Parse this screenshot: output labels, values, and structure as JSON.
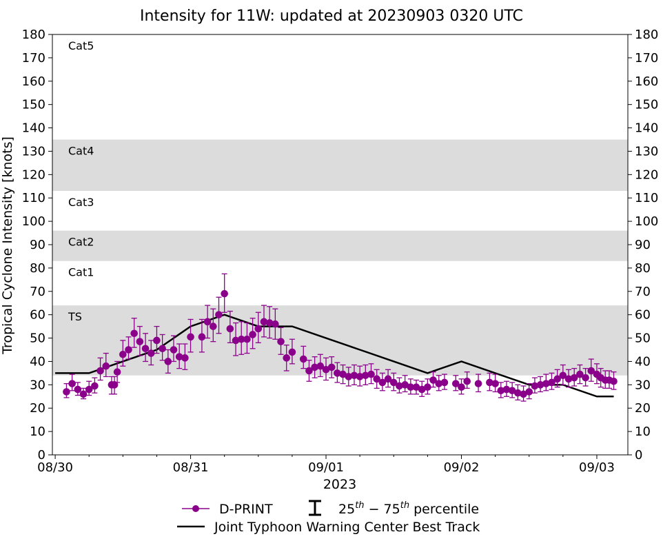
{
  "chart_data": {
    "type": "scatter",
    "title": "Intensity for 11W: updated at 20230903 0320 UTC",
    "ylabel": "Tropical Cyclone Intensity [knots]",
    "xlabel": "2023",
    "ylim": [
      0,
      180
    ],
    "yticks": [
      0,
      10,
      20,
      30,
      40,
      50,
      60,
      70,
      80,
      90,
      100,
      110,
      120,
      130,
      140,
      150,
      160,
      170,
      180
    ],
    "x_axis": "time (hours since 08/30 00 UTC)",
    "xlim": [
      -0.5,
      101.5
    ],
    "xticks": [
      {
        "x": 0,
        "label": "08/30"
      },
      {
        "x": 24,
        "label": "08/31"
      },
      {
        "x": 48,
        "label": "09/01"
      },
      {
        "x": 72,
        "label": "09/02"
      },
      {
        "x": 96,
        "label": "09/03"
      }
    ],
    "minor_xticks": [
      6,
      12,
      18,
      30,
      36,
      42,
      54,
      60,
      66,
      78,
      84,
      90
    ],
    "categories": [
      {
        "label": "TS",
        "ymin": 34,
        "ymax": 64,
        "shaded": true
      },
      {
        "label": "Cat1",
        "ymin": 64,
        "ymax": 83,
        "shaded": false
      },
      {
        "label": "Cat2",
        "ymin": 83,
        "ymax": 96,
        "shaded": true
      },
      {
        "label": "Cat3",
        "ymin": 96,
        "ymax": 113,
        "shaded": false
      },
      {
        "label": "Cat4",
        "ymin": 113,
        "ymax": 135,
        "shaded": true
      },
      {
        "label": "Cat5",
        "ymin": 135,
        "ymax": 180,
        "shaded": false
      }
    ],
    "series": [
      {
        "name": "D-PRINT",
        "color": "#8b008b",
        "x": [
          2,
          3,
          4,
          5,
          6,
          7,
          8,
          9,
          10,
          10.5,
          11,
          12,
          13,
          14,
          15,
          16,
          17,
          18,
          19,
          20,
          21,
          22,
          23,
          24,
          26,
          27,
          28,
          29,
          30,
          31,
          32,
          33,
          34,
          35,
          36,
          37,
          38,
          39,
          40,
          41,
          42,
          44,
          45,
          46,
          47,
          48,
          49,
          50,
          51,
          52,
          53,
          54,
          55,
          56,
          57,
          58,
          59,
          60,
          61,
          62,
          63,
          64,
          65,
          66,
          67,
          68,
          69,
          71,
          72,
          73,
          75,
          77,
          78,
          79,
          80,
          81,
          82,
          83,
          84,
          85,
          86,
          87,
          88,
          89,
          90,
          91,
          92,
          93,
          94,
          95,
          96,
          96.7,
          97.5,
          98.2,
          99
        ],
        "y": [
          27,
          30.5,
          28,
          26,
          28,
          29.5,
          36,
          38,
          30,
          30,
          35.5,
          43,
          45,
          52,
          48.5,
          45.5,
          43.5,
          49,
          45.5,
          40,
          45,
          42,
          41.5,
          50.5,
          50.5,
          57,
          55,
          60,
          69,
          54,
          49,
          49.5,
          49.5,
          51.5,
          54,
          57,
          56.5,
          56,
          48.5,
          41.5,
          44,
          41,
          36,
          37.5,
          38,
          36.5,
          37.5,
          35,
          34.5,
          33.5,
          34,
          33.5,
          34,
          34.5,
          32.5,
          31,
          32.5,
          31,
          29.5,
          30,
          29,
          29,
          28,
          29,
          32,
          30.5,
          31,
          30.5,
          29,
          31.5,
          30.5,
          31,
          30.5,
          27.5,
          28,
          27.5,
          26.5,
          26,
          27,
          29.5,
          30,
          30.5,
          31,
          32.5,
          34,
          32.5,
          33,
          34.5,
          33,
          36,
          34.5,
          33,
          32,
          32,
          31.5
        ],
        "p25": [
          24.5,
          27.5,
          25.5,
          24,
          25.5,
          26.5,
          32,
          33.5,
          26,
          26,
          31,
          38,
          41,
          46,
          42.5,
          40,
          38.5,
          43.5,
          40.5,
          35,
          40,
          37,
          36.5,
          44,
          44,
          50,
          48.5,
          52,
          61,
          48,
          42.5,
          43,
          43.5,
          45.5,
          48,
          50.5,
          50,
          49.5,
          43,
          36,
          39,
          37,
          31.5,
          33,
          33.5,
          32,
          33,
          31,
          30.5,
          29.5,
          30,
          29.5,
          30,
          30.5,
          28.5,
          27.5,
          29,
          27.5,
          26.5,
          27,
          26,
          26,
          25,
          26,
          29,
          27.5,
          28,
          27.5,
          26,
          28.5,
          27,
          27.5,
          27,
          24.5,
          25,
          24.5,
          23.5,
          23,
          24,
          26.5,
          27,
          27.5,
          28,
          29,
          30,
          29,
          29.5,
          30.5,
          29.5,
          31.5,
          30.5,
          29,
          28.5,
          28.5,
          28
        ],
        "p75": [
          30.5,
          34.5,
          31,
          28.5,
          31.5,
          33,
          41.5,
          43.5,
          33.5,
          33.5,
          40,
          49,
          50.5,
          58.5,
          55,
          52,
          49,
          55,
          51.5,
          45,
          51,
          47.5,
          47.5,
          58,
          58,
          64,
          62.5,
          67.5,
          77.5,
          61.5,
          56.5,
          57,
          56.5,
          58.5,
          61,
          64,
          63.5,
          62.5,
          54.5,
          47,
          49.5,
          46.5,
          40.5,
          42,
          43,
          41.5,
          42,
          39.5,
          38.5,
          37.5,
          38.5,
          38,
          38.5,
          39,
          36.5,
          35,
          36.5,
          35,
          33,
          34,
          32.5,
          32,
          31.5,
          32.5,
          35.5,
          34,
          34.5,
          34,
          32.5,
          35.5,
          34.5,
          35,
          34.5,
          31,
          31.5,
          31,
          30,
          29.5,
          30.5,
          33,
          33.5,
          34.5,
          35,
          36.5,
          38.5,
          36.5,
          37,
          38.5,
          37,
          41,
          39,
          37,
          36,
          36,
          35.5
        ]
      },
      {
        "name": "Joint Typhoon Warning Center Best Track",
        "color": "#000000",
        "x": [
          0,
          6,
          12,
          18,
          24,
          30,
          36,
          42,
          48,
          54,
          60,
          66,
          72,
          78,
          84,
          90,
          96,
          99
        ],
        "y": [
          35,
          35,
          40,
          45,
          55,
          60,
          55,
          55,
          50,
          45,
          40,
          35,
          40,
          35,
          30,
          30,
          25,
          25
        ]
      }
    ],
    "legend": {
      "placement": "bottom-center",
      "errorbar_label_main": "25",
      "errorbar_label_sup1": "th",
      "errorbar_label_mid": " − 75",
      "errorbar_label_sup2": "th",
      "errorbar_label_tail": " percentile"
    }
  }
}
